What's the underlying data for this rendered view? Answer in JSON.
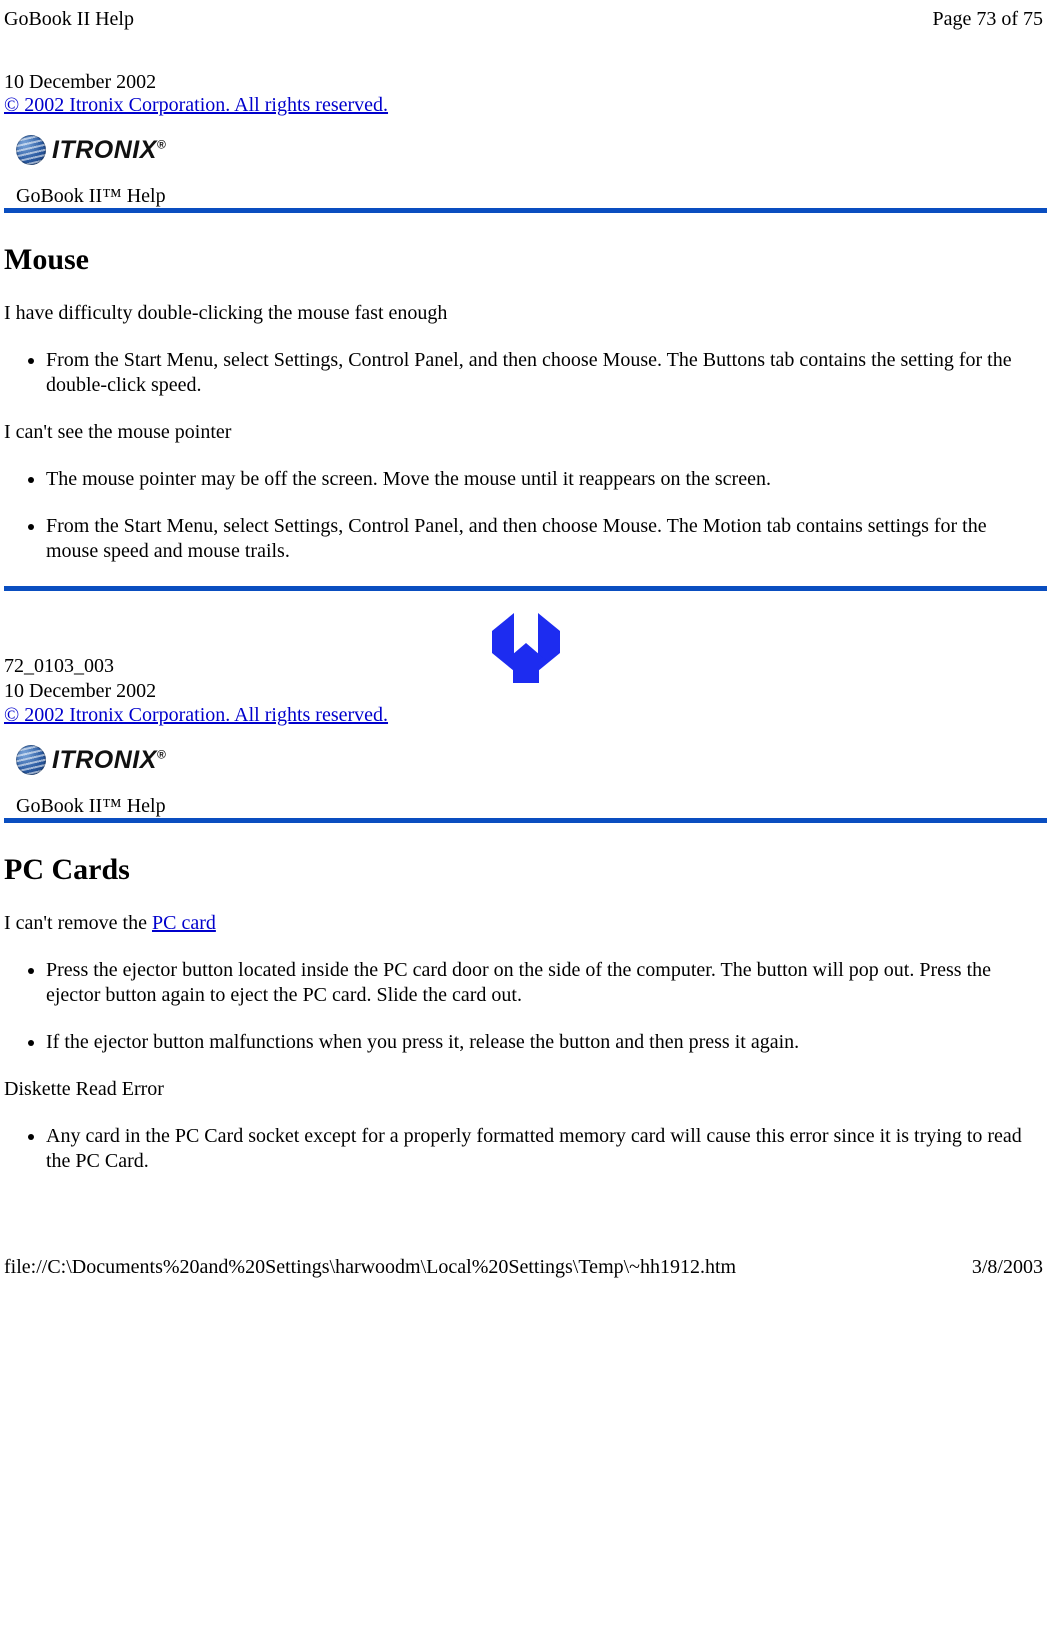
{
  "header": {
    "title": "GoBook II Help",
    "page": "Page 73 of 75"
  },
  "intro": {
    "date": "10 December 2002",
    "copyright": "© 2002 Itronix Corporation.  All rights reserved."
  },
  "logo": {
    "brand": "ITRONIX",
    "product_line": "GoBook II™ Help"
  },
  "mouse_section": {
    "title": "Mouse",
    "q1": "I have difficulty double-clicking the mouse fast enough",
    "q1_bullets": [
      "From the Start Menu, select Settings, Control Panel, and then choose Mouse.  The Buttons tab contains the setting for the double-click speed."
    ],
    "q2": "I can't see the mouse pointer",
    "q2_bullets": [
      "The mouse pointer may be off the screen. Move the mouse until it reappears on the screen.",
      "From the Start Menu, select Settings, Control Panel, and then choose Mouse.  The Motion tab contains settings for the mouse speed and mouse trails."
    ]
  },
  "nav_meta": {
    "doc_id": "72_0103_003",
    "date": "10 December 2002",
    "copyright": "© 2002 Itronix Corporation.  All rights reserved."
  },
  "pccards_section": {
    "title": "PC Cards",
    "q1_pre": "I can't remove the ",
    "q1_link": "PC card",
    "q1_bullets": [
      "Press the ejector button located inside the PC card door on the side of the computer. The button will pop out. Press the ejector button again to eject the PC card.  Slide the card out.",
      "If the ejector button malfunctions when you press it, release the button and then press it again."
    ],
    "q2": "Diskette Read Error",
    "q2_bullets": [
      "Any card in the PC Card socket except for a properly formatted memory card will cause this error since it is trying to read the PC Card."
    ]
  },
  "footer": {
    "path": "file://C:\\Documents%20and%20Settings\\harwoodm\\Local%20Settings\\Temp\\~hh1912.htm",
    "date": "3/8/2003"
  }
}
